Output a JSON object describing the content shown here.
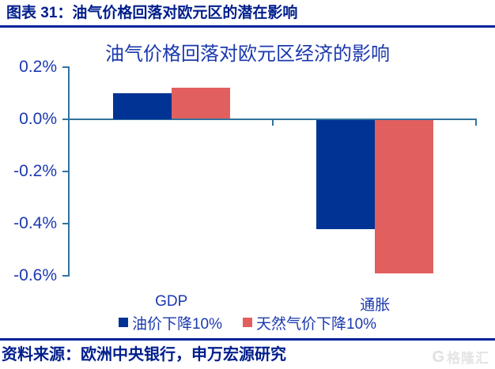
{
  "page": {
    "caption": "图表 31：油气价格回落对欧元区的潜在影响",
    "source": "资料来源：欧洲中央银行，申万宏源研究",
    "logo_text": "格隆汇"
  },
  "chart_data": {
    "type": "bar",
    "title": "油气价格回落对欧元区经济的影响",
    "categories": [
      "GDP",
      "通胀"
    ],
    "series": [
      {
        "name": "油价下降10%",
        "color": "#003394",
        "values": [
          0.1,
          -0.42
        ]
      },
      {
        "name": "天然气价下降10%",
        "color": "#E25F5F",
        "values": [
          0.12,
          -0.59
        ]
      }
    ],
    "y_ticks": [
      "0.2%",
      "0.0%",
      "-0.2%",
      "-0.4%",
      "-0.6%"
    ],
    "ylim": [
      -0.6,
      0.2
    ],
    "value_unit": "percent",
    "xlabel": "",
    "ylabel": "",
    "grid": false,
    "legend_position": "bottom",
    "colors": {
      "axis": "#31739F",
      "text": "#1B39AE"
    }
  }
}
